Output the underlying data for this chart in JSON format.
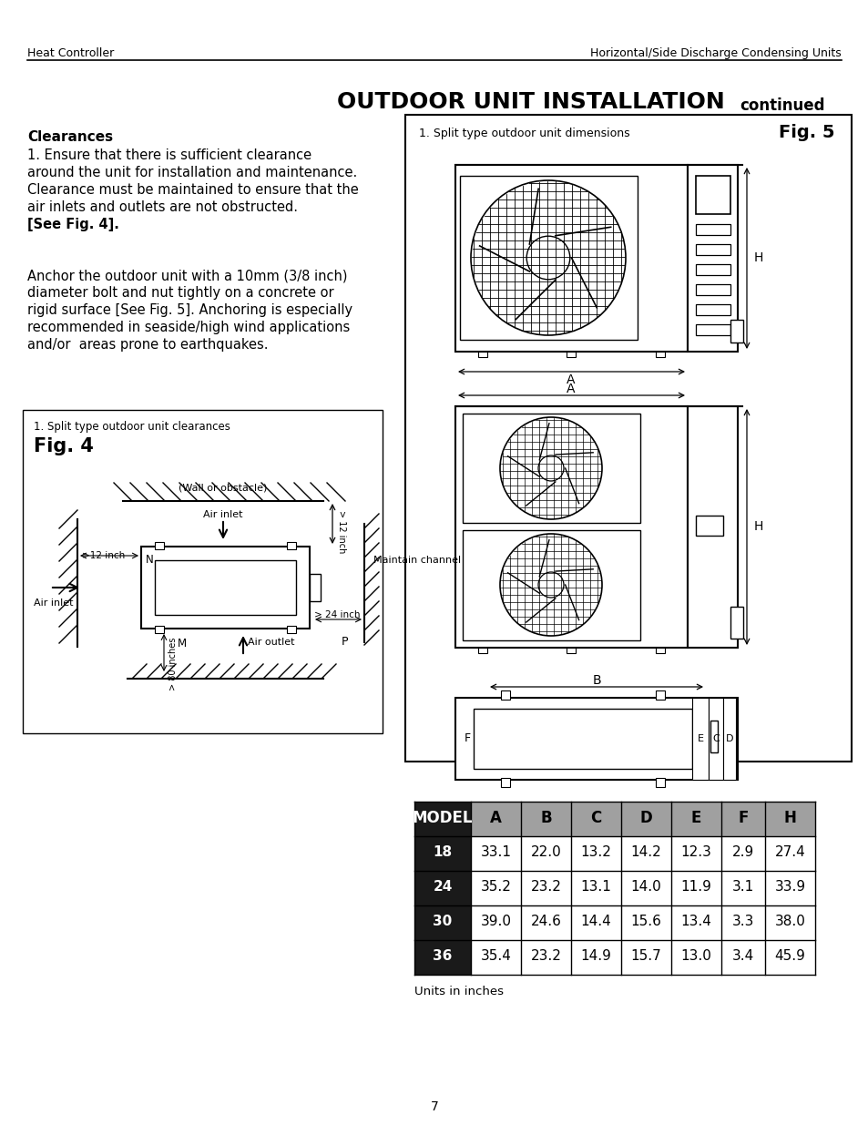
{
  "header_left": "Heat Controller",
  "header_right": "Horizontal/Side Discharge Condensing Units",
  "title_main": "OUTDOOR UNIT INSTALLATION",
  "title_continued": "continued",
  "section_clearances_title": "Clearances",
  "section_clearances_text_lines": [
    "1. Ensure that there is sufficient clearance",
    "around the unit for installation and maintenance.",
    "Clearance must be maintained to ensure that the",
    "air inlets and outlets are not obstructed.",
    "[See Fig. 4]."
  ],
  "section_anchor_text_lines": [
    "Anchor the outdoor unit with a 10mm (3/8 inch)",
    "diameter bolt and nut tightly on a concrete or",
    "rigid surface [See Fig. 5]. Anchoring is especially",
    "recommended in seaside/high wind applications",
    "and/or  areas prone to earthquakes."
  ],
  "fig4_label": "Fig. 4",
  "fig4_caption": "1. Split type outdoor unit clearances",
  "fig5_label": "Fig. 5",
  "fig5_caption": "1. Split type outdoor unit dimensions",
  "table_headers": [
    "MODEL",
    "A",
    "B",
    "C",
    "D",
    "E",
    "F",
    "H"
  ],
  "table_rows": [
    [
      "18",
      "33.1",
      "22.0",
      "13.2",
      "14.2",
      "12.3",
      "2.9",
      "27.4"
    ],
    [
      "24",
      "35.2",
      "23.2",
      "13.1",
      "14.0",
      "11.9",
      "3.1",
      "33.9"
    ],
    [
      "30",
      "39.0",
      "24.6",
      "14.4",
      "15.6",
      "13.4",
      "3.3",
      "38.0"
    ],
    [
      "36",
      "35.4",
      "23.2",
      "14.9",
      "15.7",
      "13.0",
      "3.4",
      "45.9"
    ]
  ],
  "table_note": "Units in inches",
  "table_header_bg": "#1a1a1a",
  "table_header_fg": "#ffffff",
  "table_model_bg": "#1a1a1a",
  "table_model_fg": "#ffffff",
  "table_col_header_bg": "#a0a0a0",
  "table_col_header_fg": "#000000",
  "table_data_bg": "#ffffff",
  "table_data_fg": "#000000",
  "page_number": "7",
  "background_color": "#ffffff"
}
